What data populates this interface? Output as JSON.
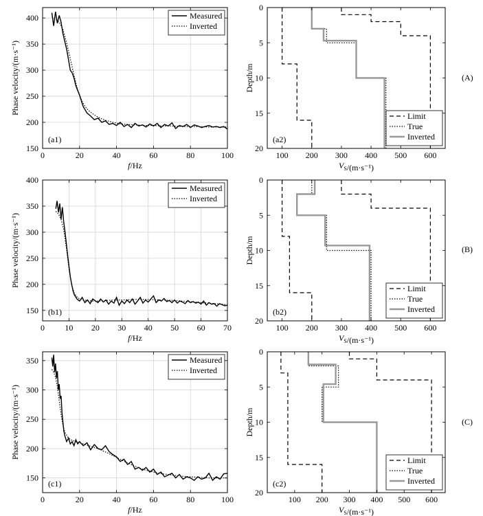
{
  "figure": {
    "row_labels": [
      "(A)",
      "(B)",
      "(C)"
    ]
  },
  "chart_data": [
    {
      "id": "a1",
      "type": "line",
      "panel_label": "(a1)",
      "xlabel_italic": "f",
      "xlabel_unit": "/Hz",
      "ylabel": "Phase velocity/(m·s⁻¹)",
      "xlim": [
        0,
        100
      ],
      "ylim": [
        150,
        420
      ],
      "xticks": [
        0,
        20,
        40,
        60,
        80,
        100
      ],
      "yticks": [
        150,
        200,
        250,
        300,
        350,
        400
      ],
      "grid": true,
      "legend_position": "top-right",
      "series": [
        {
          "name": "Measured",
          "style": "solid",
          "x": [
            5,
            6,
            7,
            8,
            9,
            10,
            11,
            12,
            13,
            14,
            15,
            16,
            17,
            18,
            20,
            22,
            24,
            26,
            28,
            30,
            32,
            34,
            36,
            38,
            40,
            42,
            44,
            46,
            48,
            50,
            52,
            54,
            56,
            58,
            60,
            62,
            64,
            66,
            68,
            70,
            72,
            74,
            76,
            78,
            80,
            82,
            84,
            86,
            88,
            90,
            92,
            94,
            96,
            98,
            100
          ],
          "y": [
            410,
            385,
            412,
            390,
            405,
            392,
            370,
            355,
            340,
            320,
            300,
            295,
            285,
            270,
            252,
            230,
            218,
            212,
            205,
            208,
            200,
            203,
            196,
            198,
            194,
            200,
            192,
            196,
            190,
            198,
            193,
            195,
            191,
            197,
            193,
            198,
            190,
            196,
            193,
            199,
            188,
            194,
            192,
            196,
            190,
            195,
            193,
            190,
            192,
            194,
            191,
            192,
            190,
            192,
            187
          ]
        },
        {
          "name": "Inverted",
          "style": "dotted",
          "x": [
            5,
            7,
            9,
            11,
            13,
            15,
            17,
            19,
            21,
            23,
            25,
            28,
            31,
            34,
            38,
            42,
            46,
            50,
            55,
            60,
            65,
            70,
            75,
            80,
            85,
            90,
            95,
            100
          ],
          "y": [
            402,
            398,
            392,
            378,
            352,
            322,
            290,
            262,
            243,
            230,
            222,
            214,
            208,
            204,
            200,
            197,
            196,
            195,
            194,
            194,
            193,
            193,
            192,
            192,
            192,
            191,
            191,
            191
          ]
        }
      ]
    },
    {
      "id": "a2",
      "type": "line",
      "panel_label": "(a2)",
      "xlabel": "V",
      "xlabel_sub": "S",
      "xlabel_unit": "/(m·s⁻¹)",
      "ylabel": "Depth/m",
      "y_inverted": true,
      "xlim": [
        50,
        650
      ],
      "ylim": [
        0,
        20
      ],
      "xticks": [
        100,
        200,
        300,
        400,
        500,
        600
      ],
      "yticks": [
        0,
        5,
        10,
        15,
        20
      ],
      "legend_position": "bottom-right",
      "series": [
        {
          "name": "Limit",
          "style": "dashed",
          "x": [
            100,
            100,
            150,
            150,
            200,
            200
          ],
          "y": [
            0,
            8,
            8,
            16,
            16,
            20
          ]
        },
        {
          "name": "Limit",
          "style": "dashed",
          "x": [
            300,
            300,
            400,
            400,
            500,
            500,
            600,
            600
          ],
          "y": [
            0,
            1,
            1,
            2,
            2,
            4,
            4,
            20
          ]
        },
        {
          "name": "True",
          "style": "dotted",
          "x": [
            200,
            200,
            250,
            250,
            350,
            350,
            450,
            450
          ],
          "y": [
            0,
            3,
            3,
            5,
            5,
            10,
            10,
            20
          ]
        },
        {
          "name": "Inverted",
          "style": "solid-gray",
          "x": [
            200,
            200,
            240,
            240,
            350,
            350,
            445,
            445
          ],
          "y": [
            0,
            3,
            3,
            4.7,
            4.7,
            10,
            10,
            20
          ]
        }
      ]
    },
    {
      "id": "b1",
      "type": "line",
      "panel_label": "(b1)",
      "xlabel_italic": "f",
      "xlabel_unit": "/Hz",
      "ylabel": "Phase velocity/(m·s⁻¹)",
      "xlim": [
        0,
        70
      ],
      "ylim": [
        130,
        400
      ],
      "xticks": [
        0,
        10,
        20,
        30,
        40,
        50,
        60,
        70
      ],
      "yticks": [
        150,
        200,
        250,
        300,
        350,
        400
      ],
      "grid": true,
      "legend_position": "top-right",
      "series": [
        {
          "name": "Measured",
          "style": "solid",
          "x": [
            5,
            5.5,
            6,
            6.5,
            7,
            7.5,
            8,
            8.5,
            9,
            9.5,
            10,
            10.5,
            11,
            11.5,
            12,
            13,
            14,
            15,
            16,
            17,
            18,
            19,
            20,
            21,
            22,
            23,
            24,
            25,
            26,
            27,
            28,
            29,
            30,
            31,
            32,
            33,
            34,
            35,
            36,
            37,
            38,
            39,
            40,
            41,
            42,
            43,
            44,
            45,
            46,
            47,
            48,
            49,
            50,
            51,
            52,
            53,
            54,
            55,
            56,
            57,
            58,
            59,
            60,
            61,
            62,
            63,
            64,
            65,
            66,
            67,
            68,
            69,
            70
          ],
          "y": [
            345,
            360,
            338,
            355,
            325,
            348,
            320,
            300,
            278,
            255,
            235,
            215,
            200,
            188,
            180,
            172,
            168,
            175,
            165,
            170,
            163,
            172,
            168,
            165,
            172,
            166,
            170,
            162,
            168,
            164,
            175,
            160,
            168,
            163,
            170,
            165,
            172,
            162,
            168,
            175,
            164,
            170,
            166,
            172,
            178,
            165,
            170,
            168,
            173,
            167,
            169,
            165,
            170,
            164,
            168,
            166,
            163,
            169,
            165,
            167,
            164,
            166,
            162,
            168,
            160,
            165,
            162,
            163,
            158,
            163,
            161,
            159,
            160
          ]
        },
        {
          "name": "Inverted",
          "style": "dotted",
          "x": [
            5,
            6,
            7,
            8,
            9,
            10,
            11,
            12,
            13,
            14,
            15,
            17,
            19,
            21,
            24,
            27,
            30,
            35,
            40,
            45,
            50,
            55,
            60,
            65,
            70
          ],
          "y": [
            340,
            335,
            325,
            305,
            270,
            230,
            200,
            183,
            176,
            172,
            170,
            169,
            168,
            168,
            169,
            170,
            170,
            171,
            171,
            170,
            169,
            167,
            165,
            163,
            161
          ]
        }
      ]
    },
    {
      "id": "b2",
      "type": "line",
      "panel_label": "(b2)",
      "xlabel": "V",
      "xlabel_sub": "S",
      "xlabel_unit": "/(m·s⁻¹)",
      "ylabel": "Depth/m",
      "y_inverted": true,
      "xlim": [
        50,
        650
      ],
      "ylim": [
        0,
        20
      ],
      "xticks": [
        100,
        200,
        300,
        400,
        500,
        600
      ],
      "yticks": [
        0,
        5,
        10,
        15,
        20
      ],
      "legend_position": "bottom-right",
      "series": [
        {
          "name": "Limit",
          "style": "dashed",
          "x": [
            100,
            100,
            125,
            125,
            200,
            200
          ],
          "y": [
            0,
            8,
            8,
            16,
            16,
            20
          ]
        },
        {
          "name": "Limit",
          "style": "dashed",
          "x": [
            300,
            300,
            400,
            400,
            600,
            600
          ],
          "y": [
            0,
            2,
            2,
            4,
            4,
            20
          ]
        },
        {
          "name": "True",
          "style": "dotted",
          "x": [
            200,
            200,
            150,
            150,
            250,
            250,
            400,
            400
          ],
          "y": [
            0,
            2,
            2,
            5,
            5,
            10,
            10,
            20
          ]
        },
        {
          "name": "Inverted",
          "style": "solid-gray",
          "x": [
            210,
            210,
            150,
            150,
            245,
            245,
            395,
            395
          ],
          "y": [
            0,
            2,
            2,
            5,
            5,
            9.3,
            9.3,
            20
          ]
        }
      ]
    },
    {
      "id": "c1",
      "type": "line",
      "panel_label": "(c1)",
      "xlabel_italic": "f",
      "xlabel_unit": "/Hz",
      "ylabel": "Phase velocity/(m·s⁻¹)",
      "xlim": [
        0,
        100
      ],
      "ylim": [
        125,
        365
      ],
      "xticks": [
        0,
        20,
        40,
        60,
        80,
        100
      ],
      "yticks": [
        150,
        200,
        250,
        300,
        350
      ],
      "grid": true,
      "legend_position": "top-right",
      "series": [
        {
          "name": "Measured",
          "style": "solid",
          "x": [
            5,
            5.5,
            6,
            6.5,
            7,
            7.5,
            8,
            8.5,
            9,
            9.5,
            10,
            10.5,
            11,
            11.5,
            12,
            13,
            14,
            15,
            16,
            17,
            18,
            19,
            20,
            22,
            24,
            26,
            28,
            30,
            32,
            34,
            36,
            38,
            40,
            42,
            44,
            46,
            48,
            50,
            52,
            54,
            56,
            58,
            60,
            62,
            64,
            66,
            68,
            70,
            72,
            74,
            76,
            78,
            80,
            82,
            84,
            86,
            88,
            90,
            92,
            94,
            96,
            98,
            100
          ],
          "y": [
            355,
            340,
            360,
            330,
            345,
            320,
            332,
            300,
            310,
            285,
            290,
            262,
            245,
            230,
            222,
            212,
            218,
            208,
            212,
            205,
            215,
            208,
            212,
            205,
            210,
            198,
            207,
            200,
            198,
            205,
            195,
            190,
            186,
            178,
            182,
            173,
            178,
            165,
            168,
            163,
            168,
            160,
            165,
            156,
            160,
            152,
            155,
            158,
            150,
            156,
            148,
            152,
            150,
            146,
            152,
            148,
            150,
            158,
            146,
            152,
            148,
            157,
            158
          ]
        },
        {
          "name": "Inverted",
          "style": "dotted",
          "x": [
            5,
            6,
            7,
            8,
            9,
            10,
            11,
            12,
            14,
            16,
            18,
            20,
            25,
            30,
            35,
            40,
            45,
            50,
            55,
            60,
            65,
            70,
            75,
            80,
            85,
            90,
            95,
            100
          ],
          "y": [
            335,
            330,
            322,
            305,
            282,
            258,
            240,
            228,
            218,
            214,
            212,
            210,
            205,
            200,
            193,
            185,
            177,
            170,
            164,
            160,
            157,
            155,
            153,
            152,
            151,
            150,
            150,
            150
          ]
        }
      ]
    },
    {
      "id": "c2",
      "type": "line",
      "panel_label": "(c2)",
      "xlabel": "V",
      "xlabel_sub": "S",
      "xlabel_unit": "/(m·s⁻¹)",
      "ylabel": "Depth/m",
      "y_inverted": true,
      "xlim": [
        0,
        650
      ],
      "ylim": [
        0,
        20
      ],
      "xticks": [
        100,
        200,
        300,
        400,
        500,
        600
      ],
      "yticks": [
        0,
        5,
        10,
        15,
        20
      ],
      "legend_position": "bottom-right",
      "series": [
        {
          "name": "Limit",
          "style": "dashed",
          "x": [
            50,
            50,
            75,
            75,
            100,
            100,
            200,
            200
          ],
          "y": [
            0,
            3,
            3,
            16,
            16,
            16,
            16,
            20
          ]
        },
        {
          "name": "Limit",
          "style": "dashed",
          "x": [
            300,
            300,
            400,
            400,
            600,
            600
          ],
          "y": [
            0,
            1,
            1,
            4,
            4,
            20
          ]
        },
        {
          "name": "True",
          "style": "dotted",
          "x": [
            150,
            150,
            260,
            260,
            200,
            200,
            400,
            400
          ],
          "y": [
            0,
            2,
            2,
            5,
            5,
            10,
            10,
            20
          ]
        },
        {
          "name": "Inverted",
          "style": "solid-gray",
          "x": [
            150,
            150,
            250,
            250,
            205,
            205,
            400,
            400
          ],
          "y": [
            0,
            1.8,
            1.8,
            4.6,
            4.6,
            10,
            10,
            20
          ]
        }
      ]
    }
  ]
}
